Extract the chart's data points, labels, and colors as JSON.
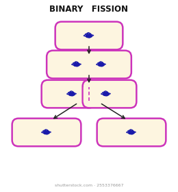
{
  "title": "BINARY   FISSION",
  "title_fontsize": 8.5,
  "bg_color": "#ffffff",
  "cell_fill": "#fdf5e0",
  "cell_edge": "#cc33bb",
  "cell_edge_width": 1.8,
  "arrow_color": "#222222",
  "dna_color": "#1a1aaa",
  "dna_linewidth": 0.9,
  "divider_color": "#cc33bb",
  "watermark": "shutterstock.com · 2553376667",
  "watermark_fontsize": 4.5
}
